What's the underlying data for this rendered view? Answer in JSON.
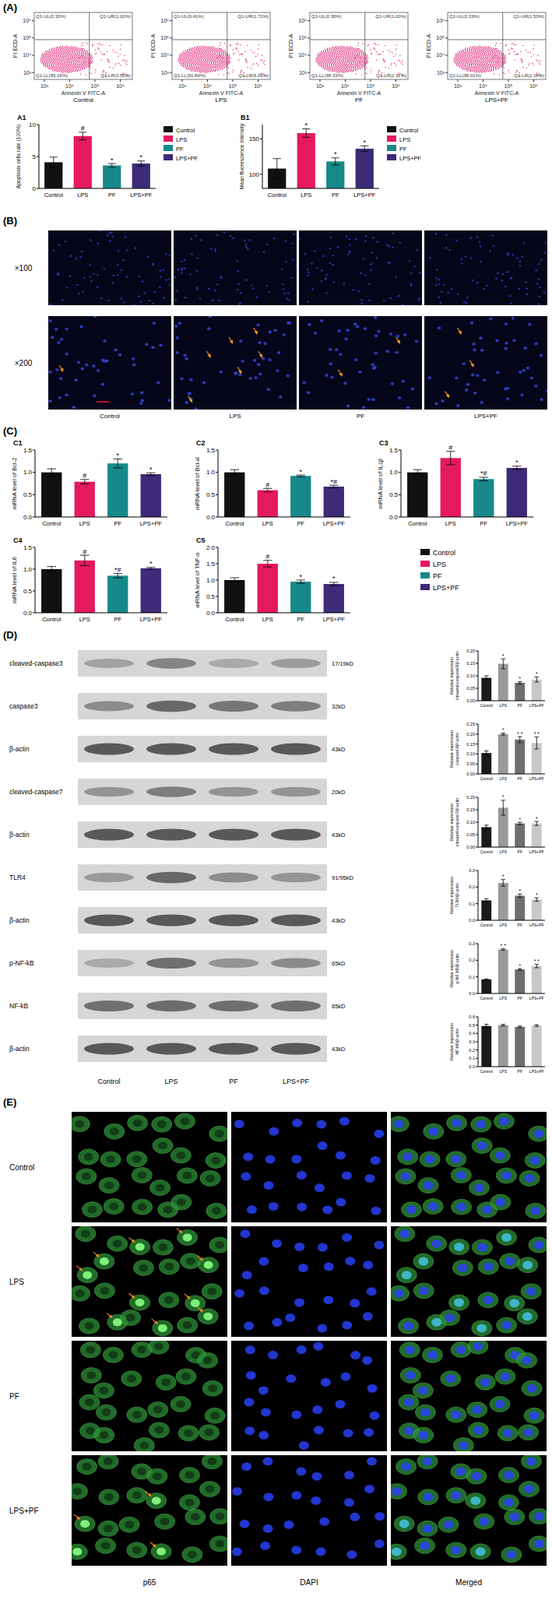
{
  "figure": {
    "panel_labels": [
      "(A)",
      "(B)",
      "(C)",
      "(D)",
      "(E)"
    ],
    "microscopy": {
      "magnifications": [
        "×100",
        "×200"
      ],
      "groups": [
        "Control",
        "LPS",
        "PF",
        "LPS+PF"
      ]
    },
    "blots": {
      "rows": [
        {
          "label": "cleaved-caspase3",
          "size": "17/19kD"
        },
        {
          "label": "caspase3",
          "size": "32kD"
        },
        {
          "label": "β-actin",
          "size": "43kD"
        },
        {
          "label": "cleaved-caspase7",
          "size": "20kD"
        },
        {
          "label": "β-actin",
          "size": "43kD"
        },
        {
          "label": "TLR4",
          "size": "91/95kD"
        },
        {
          "label": "β-actin",
          "size": "43kD"
        },
        {
          "label": "p-NF-kB",
          "size": "65kD"
        },
        {
          "label": "NF-kB",
          "size": "65kD"
        },
        {
          "label": "β-actin",
          "size": "43kD"
        }
      ],
      "groups": [
        "Control",
        "LPS",
        "PF",
        "LPS+PF"
      ]
    },
    "immunofluorescence": {
      "groups": [
        "Control",
        "LPS",
        "PF",
        "LPS+PF"
      ],
      "channels": [
        "p65",
        "DAPI",
        "Merged"
      ]
    }
  },
  "chart_data": [
    {
      "type": "scatter",
      "title": "Control",
      "x_label": "Annexin V FITC-A",
      "y_label": "PI ECD-A",
      "log": true,
      "color": "#e0207a",
      "xlim": [
        400,
        3000000
      ],
      "ylim": [
        400,
        3000000
      ],
      "xticks": [
        {
          "value": 1000,
          "label": "10³"
        },
        {
          "value": 10000,
          "label": "10⁴"
        },
        {
          "value": 100000,
          "label": "10⁵"
        },
        {
          "value": 1000000,
          "label": "10⁶"
        }
      ],
      "yticks": [
        {
          "value": 1000,
          "label": "10³"
        },
        {
          "value": 10000,
          "label": "10⁴"
        },
        {
          "value": 100000,
          "label": "10⁵"
        },
        {
          "value": 1000000,
          "label": "10⁶"
        }
      ],
      "gate": [
        60000,
        80000
      ],
      "quadrants": [
        "Q1-UL(0.32%)",
        "Q1-UR(1.02%)",
        "Q1-LL(95.16%)",
        "Q1-LR(3.50%)"
      ]
    },
    {
      "type": "scatter",
      "title": "LPS",
      "x_label": "Annexin V FITC-A",
      "y_label": "PI ECD-A",
      "log": true,
      "color": "#e0207a",
      "xlim": [
        400,
        3000000
      ],
      "ylim": [
        400,
        3000000
      ],
      "xticks": [
        {
          "value": 1000,
          "label": "10³"
        },
        {
          "value": 10000,
          "label": "10⁴"
        },
        {
          "value": 100000,
          "label": "10⁵"
        },
        {
          "value": 1000000,
          "label": "10⁶"
        }
      ],
      "yticks": [
        {
          "value": 1000,
          "label": "10³"
        },
        {
          "value": 10000,
          "label": "10⁴"
        },
        {
          "value": 100000,
          "label": "10⁵"
        },
        {
          "value": 1000000,
          "label": "10⁶"
        }
      ],
      "gate": [
        60000,
        80000
      ],
      "quadrants": [
        "Q1-UL(0.41%)",
        "Q1-UR(1.72%)",
        "Q1-LL(91.84%)",
        "Q1-LR(6.03%)"
      ]
    },
    {
      "type": "scatter",
      "title": "PF",
      "x_label": "Annexin V FITC-A",
      "y_label": "PI ECD-A",
      "log": true,
      "color": "#e0207a",
      "xlim": [
        400,
        3000000
      ],
      "ylim": [
        400,
        3000000
      ],
      "xticks": [
        {
          "value": 1000,
          "label": "10³"
        },
        {
          "value": 10000,
          "label": "10⁴"
        },
        {
          "value": 100000,
          "label": "10⁵"
        },
        {
          "value": 1000000,
          "label": "10⁶"
        }
      ],
      "yticks": [
        {
          "value": 1000,
          "label": "10³"
        },
        {
          "value": 10000,
          "label": "10⁴"
        },
        {
          "value": 100000,
          "label": "10⁵"
        },
        {
          "value": 1000000,
          "label": "10⁶"
        }
      ],
      "gate": [
        60000,
        80000
      ],
      "quadrants": [
        "Q1-UL(0.36%)",
        "Q1-UR(1.00%)",
        "Q1-LL(96.33%)",
        "Q1-LR(2.31%)"
      ]
    },
    {
      "type": "scatter",
      "title": "LPS+PF",
      "x_label": "Annexin V FITC-A",
      "y_label": "PI ECD-A",
      "log": true,
      "color": "#e0207a",
      "xlim": [
        400,
        3000000
      ],
      "ylim": [
        400,
        3000000
      ],
      "xticks": [
        {
          "value": 1000,
          "label": "10³"
        },
        {
          "value": 10000,
          "label": "10⁴"
        },
        {
          "value": 100000,
          "label": "10⁵"
        },
        {
          "value": 1000000,
          "label": "10⁶"
        }
      ],
      "yticks": [
        {
          "value": 1000,
          "label": "10³"
        },
        {
          "value": 10000,
          "label": "10⁴"
        },
        {
          "value": 100000,
          "label": "10⁵"
        },
        {
          "value": 1000000,
          "label": "10⁶"
        }
      ],
      "gate": [
        60000,
        80000
      ],
      "quadrants": [
        "Q1-UL(0.33%)",
        "Q1-UR(1.53%)",
        "Q1-LL(96.01%)",
        "Q1-LR(2.14%)"
      ]
    },
    {
      "type": "bar",
      "title": "A1",
      "y_label": "Apoptosis cells rate (100%)",
      "categories": [
        "Control",
        "LPS",
        "PF",
        "LPS+PF"
      ],
      "colors": [
        "#111111",
        "#e5195e",
        "#17898a",
        "#3d2a78"
      ],
      "values": [
        4.1,
        8.2,
        3.6,
        3.9
      ],
      "errors": [
        0.8,
        0.6,
        0.3,
        0.4
      ],
      "annotations": [
        null,
        "#",
        "*",
        "*"
      ],
      "ylim": [
        0,
        10
      ],
      "yticks": [
        0,
        5,
        10
      ],
      "legend": "right"
    },
    {
      "type": "bar",
      "title": "B1",
      "y_label": "Mean fluorescence intensity",
      "categories": [
        "Control",
        "LPS",
        "PF",
        "LPS+PF"
      ],
      "colors": [
        "#111111",
        "#e5195e",
        "#17898a",
        "#3d2a78"
      ],
      "values": [
        108,
        158,
        118,
        136
      ],
      "errors": [
        14,
        6,
        5,
        4
      ],
      "annotations": [
        null,
        "*",
        "*",
        "*"
      ],
      "ylim": [
        80,
        170
      ],
      "yticks": [
        100,
        150
      ],
      "legend": "right"
    },
    {
      "type": "bar",
      "title": "C1",
      "y_label": "mRNA level of Bcl-2",
      "categories": [
        "Control",
        "LPS",
        "PF",
        "LPS+PF"
      ],
      "colors": [
        "#111111",
        "#e5195e",
        "#17898a",
        "#3d2a78"
      ],
      "values": [
        1.0,
        0.79,
        1.2,
        0.96
      ],
      "errors": [
        0.08,
        0.05,
        0.1,
        0.03
      ],
      "annotations": [
        null,
        "#",
        "*",
        "*"
      ],
      "ylim": [
        0,
        1.5
      ],
      "yticks": [
        {
          "value": 0,
          "label": "0.0"
        },
        0.5,
        {
          "value": 1,
          "label": "1.0"
        },
        1.5
      ]
    },
    {
      "type": "bar",
      "title": "C2",
      "y_label": "mRNA level of Bcl-xl",
      "categories": [
        "Control",
        "LPS",
        "PF",
        "LPS+PF"
      ],
      "colors": [
        "#111111",
        "#e5195e",
        "#17898a",
        "#3d2a78"
      ],
      "values": [
        1.0,
        0.6,
        0.92,
        0.68
      ],
      "errors": [
        0.06,
        0.04,
        0.02,
        0.03
      ],
      "annotations": [
        null,
        "#",
        "*",
        "*#"
      ],
      "ylim": [
        0,
        1.5
      ],
      "yticks": [
        {
          "value": 0,
          "label": "0.0"
        },
        0.5,
        {
          "value": 1,
          "label": "1.0"
        },
        1.5
      ]
    },
    {
      "type": "bar",
      "title": "C3",
      "y_label": "mRNA level of IL1β",
      "categories": [
        "Control",
        "LPS",
        "PF",
        "LPS+PF"
      ],
      "colors": [
        "#111111",
        "#e5195e",
        "#17898a",
        "#3d2a78"
      ],
      "values": [
        1.0,
        1.32,
        0.85,
        1.1
      ],
      "errors": [
        0.06,
        0.15,
        0.04,
        0.04
      ],
      "annotations": [
        null,
        "#",
        "*#",
        "*"
      ],
      "ylim": [
        0,
        1.5
      ],
      "yticks": [
        {
          "value": 0,
          "label": "0.0"
        },
        0.5,
        {
          "value": 1,
          "label": "1.0"
        },
        1.5
      ]
    },
    {
      "type": "bar",
      "title": "C4",
      "y_label": "mRNA level of IL6",
      "categories": [
        "Control",
        "LPS",
        "PF",
        "LPS+PF"
      ],
      "colors": [
        "#111111",
        "#e5195e",
        "#17898a",
        "#3d2a78"
      ],
      "values": [
        1.0,
        1.2,
        0.85,
        1.02
      ],
      "errors": [
        0.06,
        0.12,
        0.05,
        0.02
      ],
      "annotations": [
        null,
        "#",
        "*#",
        "*"
      ],
      "ylim": [
        0,
        1.5
      ],
      "yticks": [
        {
          "value": 0,
          "label": "0.0"
        },
        0.5,
        {
          "value": 1,
          "label": "1.0"
        },
        1.5
      ]
    },
    {
      "type": "bar",
      "title": "C5",
      "y_label": "mRNA level of TNF-α",
      "categories": [
        "Control",
        "LPS",
        "PF",
        "LPS+PF"
      ],
      "colors": [
        "#111111",
        "#e5195e",
        "#17898a",
        "#3d2a78"
      ],
      "values": [
        1.0,
        1.5,
        0.95,
        0.88
      ],
      "errors": [
        0.07,
        0.1,
        0.05,
        0.05
      ],
      "annotations": [
        null,
        "#",
        "*",
        "*"
      ],
      "ylim": [
        0,
        2
      ],
      "yticks": [
        {
          "value": 0,
          "label": "0.0"
        },
        0.5,
        {
          "value": 1,
          "label": "1.0"
        },
        1.5,
        {
          "value": 2,
          "label": "2.0"
        }
      ],
      "legend": "right"
    },
    {
      "type": "bar",
      "y_label": "Relative expression cleaved-caspase3/β-actin",
      "categories": [
        "Control",
        "LPS",
        "PF",
        "LPS+PF"
      ],
      "colors": [
        "#1a1a1a",
        "#9a9a9a",
        "#6e6e6e",
        "#c8c8c8"
      ],
      "values": [
        0.092,
        0.148,
        0.072,
        0.085
      ],
      "errors": [
        0.008,
        0.02,
        0.005,
        0.01
      ],
      "annotations": [
        null,
        "*",
        "*",
        "*"
      ],
      "ylim": [
        0,
        0.2
      ],
      "yticks": [
        {
          "value": 0,
          "label": "0.00"
        },
        0.05,
        {
          "value": 0.1,
          "label": "0.10"
        },
        0.15,
        {
          "value": 0.2,
          "label": "0.20"
        }
      ]
    },
    {
      "type": "bar",
      "y_label": "Relative expression caspase3/β-actin",
      "categories": [
        "Control",
        "LPS",
        "PF",
        "LPS+PF"
      ],
      "colors": [
        "#1a1a1a",
        "#9a9a9a",
        "#6e6e6e",
        "#c8c8c8"
      ],
      "values": [
        0.105,
        0.2,
        0.172,
        0.155
      ],
      "errors": [
        0.01,
        0.005,
        0.015,
        0.03
      ],
      "annotations": [
        null,
        "*",
        "* *",
        "* *"
      ],
      "ylim": [
        0,
        0.25
      ],
      "yticks": [
        {
          "value": 0,
          "label": "0.00"
        },
        0.05,
        {
          "value": 0.1,
          "label": "0.10"
        },
        0.15,
        {
          "value": 0.2,
          "label": "0.20"
        },
        0.25
      ]
    },
    {
      "type": "bar",
      "y_label": "Relative expression cleaved-caspase7/β-actin",
      "categories": [
        "Control",
        "LPS",
        "PF",
        "LPS+PF"
      ],
      "colors": [
        "#1a1a1a",
        "#9a9a9a",
        "#6e6e6e",
        "#c8c8c8"
      ],
      "values": [
        0.08,
        0.158,
        0.095,
        0.095
      ],
      "errors": [
        0.008,
        0.03,
        0.005,
        0.008
      ],
      "annotations": [
        null,
        "*",
        "*",
        "*"
      ],
      "ylim": [
        0,
        0.2
      ],
      "yticks": [
        {
          "value": 0,
          "label": "0.00"
        },
        0.05,
        {
          "value": 0.1,
          "label": "0.10"
        },
        0.15,
        {
          "value": 0.2,
          "label": "0.20"
        }
      ]
    },
    {
      "type": "bar",
      "y_label": "Relative expression TLR4/β-actin",
      "categories": [
        "Control",
        "LPS",
        "PF",
        "LPS+PF"
      ],
      "colors": [
        "#1a1a1a",
        "#9a9a9a",
        "#6e6e6e",
        "#c8c8c8"
      ],
      "values": [
        0.12,
        0.225,
        0.148,
        0.125
      ],
      "errors": [
        0.01,
        0.02,
        0.01,
        0.01
      ],
      "annotations": [
        null,
        "*",
        "*",
        "*"
      ],
      "ylim": [
        0,
        0.3
      ],
      "yticks": [
        {
          "value": 0,
          "label": "0.0"
        },
        0.1,
        0.2,
        0.3
      ]
    },
    {
      "type": "bar",
      "y_label": "Relative expression p-NF-kB/β-actin",
      "categories": [
        "Control",
        "LPS",
        "PF",
        "LPS+PF"
      ],
      "colors": [
        "#1a1a1a",
        "#9a9a9a",
        "#6e6e6e",
        "#c8c8c8"
      ],
      "values": [
        0.085,
        0.265,
        0.145,
        0.165
      ],
      "errors": [
        0.003,
        0.005,
        0.005,
        0.01
      ],
      "annotations": [
        null,
        "* *",
        "*",
        "* *"
      ],
      "ylim": [
        0,
        0.3
      ],
      "yticks": [
        {
          "value": 0,
          "label": "0.0"
        },
        0.1,
        0.2,
        0.3
      ]
    },
    {
      "type": "bar",
      "y_label": "Relative expression NF-kB/β-actin",
      "categories": [
        "Control",
        "LPS",
        "PF",
        "LPS+PF"
      ],
      "colors": [
        "#1a1a1a",
        "#9a9a9a",
        "#6e6e6e",
        "#c8c8c8"
      ],
      "values": [
        0.49,
        0.5,
        0.48,
        0.495
      ],
      "errors": [
        0.02,
        0.01,
        0.01,
        0.01
      ],
      "annotations": [
        null,
        null,
        null,
        null
      ],
      "ylim": [
        0,
        0.6
      ],
      "yticks": [
        {
          "value": 0,
          "label": "0.0"
        },
        0.1,
        0.2,
        0.3,
        0.4,
        0.5,
        0.6
      ]
    }
  ]
}
